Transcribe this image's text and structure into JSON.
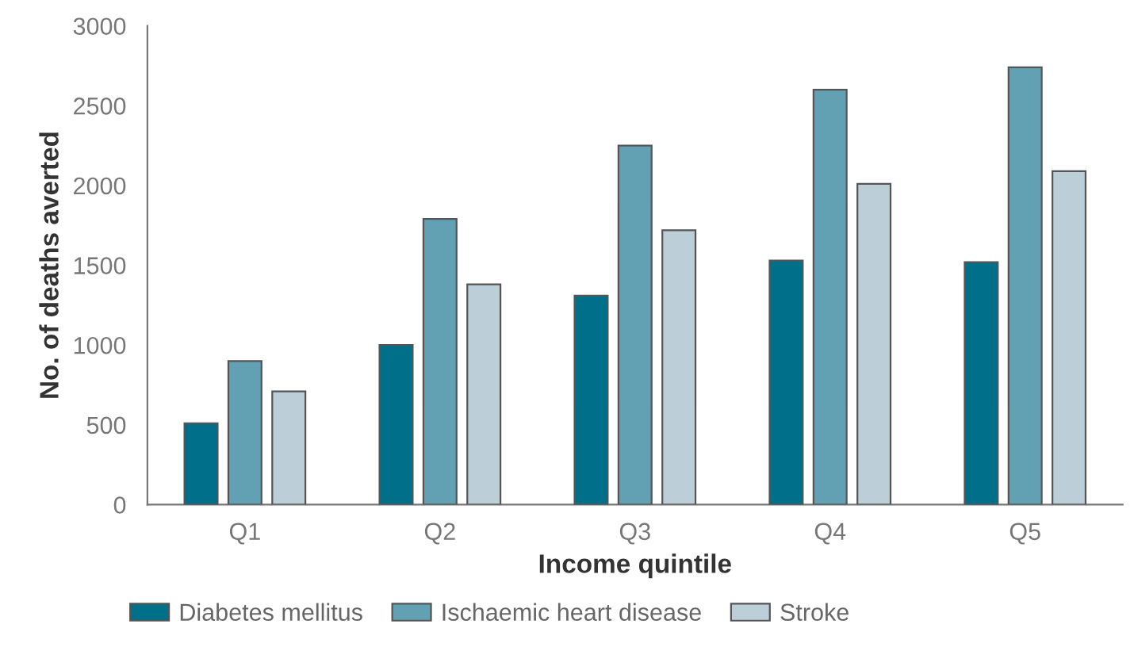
{
  "chart_data": {
    "type": "bar",
    "xlabel": "Income quintile",
    "ylabel": "No. of deaths averted",
    "categories": [
      "Q1",
      "Q2",
      "Q3",
      "Q4",
      "Q5"
    ],
    "series": [
      {
        "name": "Diabetes mellitus",
        "color": "#006f8a",
        "values": [
          510,
          1000,
          1310,
          1530,
          1520
        ]
      },
      {
        "name": "Ischaemic heart disease",
        "color": "#62a0b4",
        "values": [
          900,
          1790,
          2250,
          2600,
          2740
        ]
      },
      {
        "name": "Stroke",
        "color": "#bccfd8",
        "values": [
          710,
          1380,
          1720,
          2010,
          2090
        ]
      }
    ],
    "ylim": [
      0,
      3000
    ],
    "yticks": [
      0,
      500,
      1000,
      1500,
      2000,
      2500,
      3000
    ],
    "grid": false,
    "legend": "bottom"
  }
}
